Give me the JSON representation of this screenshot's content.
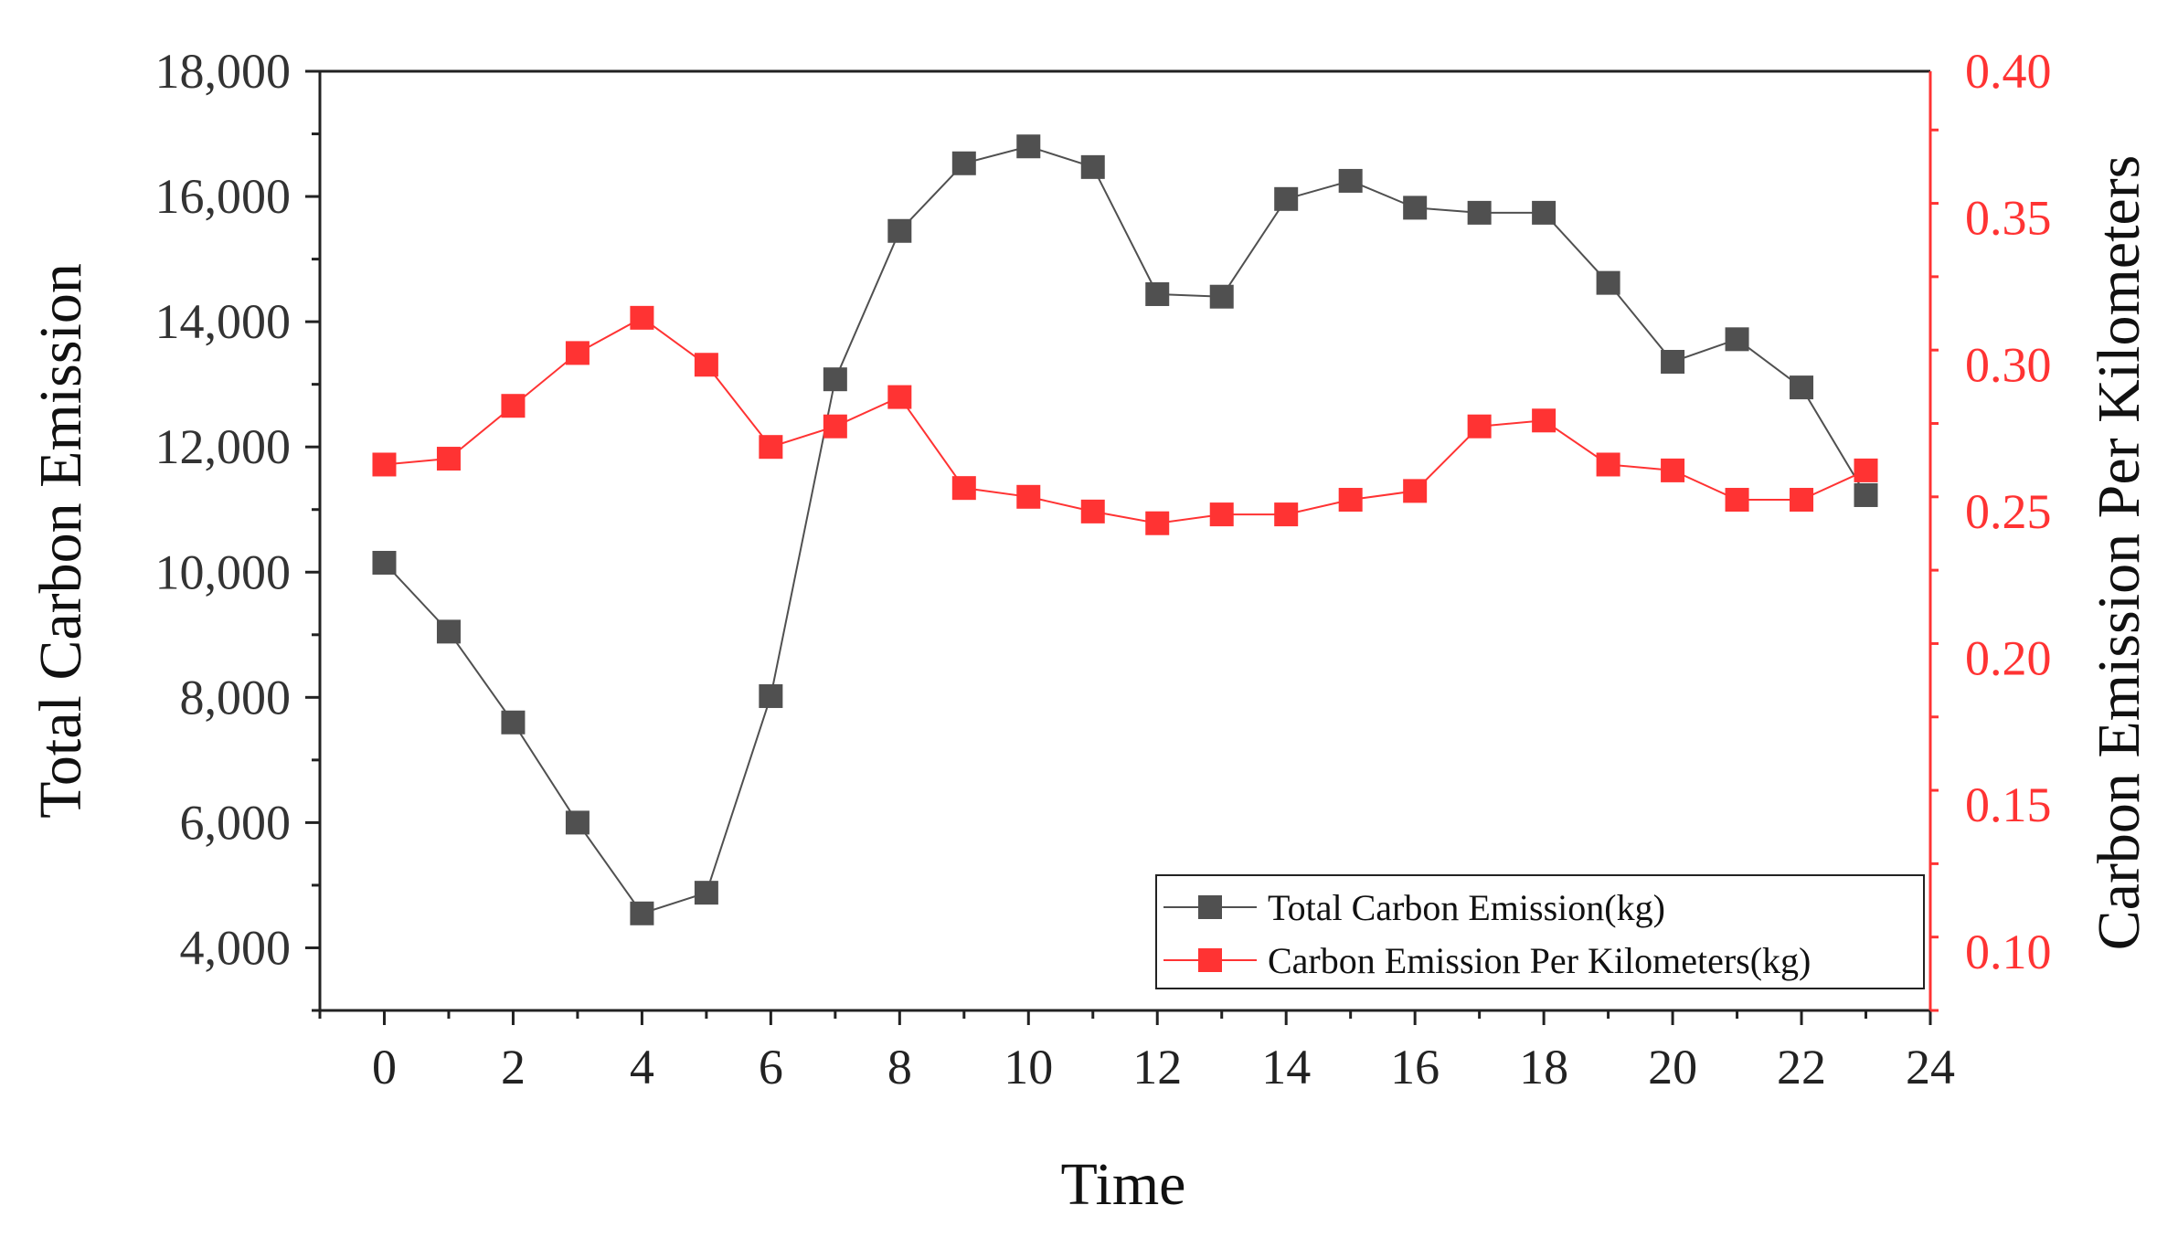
{
  "chart_data": {
    "type": "line",
    "title": "",
    "xlabel": "Time",
    "ylabel_left": "Total Carbon Emission",
    "ylabel_right": "Carbon Emission Per Kilometers",
    "xlim": [
      -1,
      24
    ],
    "ylim_left": [
      3000,
      18000
    ],
    "ylim_right": [
      0.08,
      0.4
    ],
    "x_ticks": [
      0,
      2,
      4,
      6,
      8,
      10,
      12,
      14,
      16,
      18,
      20,
      22,
      24
    ],
    "y_left_ticks": [
      4000,
      6000,
      8000,
      10000,
      12000,
      14000,
      16000,
      18000
    ],
    "y_left_tick_labels": [
      "4,000",
      "6,000",
      "8,000",
      "10,000",
      "12,000",
      "14,000",
      "16,000",
      "18,000"
    ],
    "y_right_ticks": [
      0.1,
      0.15,
      0.2,
      0.25,
      0.3,
      0.35,
      0.4
    ],
    "y_right_tick_labels": [
      "0.10",
      "0.15",
      "0.20",
      "0.25",
      "0.30",
      "0.35",
      "0.40"
    ],
    "grid": false,
    "legend_position": "bottom-right",
    "x": [
      0,
      1,
      2,
      3,
      4,
      5,
      6,
      7,
      8,
      9,
      10,
      11,
      12,
      13,
      14,
      15,
      16,
      17,
      18,
      19,
      20,
      21,
      22,
      23
    ],
    "series": [
      {
        "name": "Total Carbon Emission(kg)",
        "axis": "left",
        "color": "#505050",
        "values": [
          10150,
          9050,
          7600,
          6000,
          4550,
          4880,
          8020,
          13080,
          15450,
          16530,
          16800,
          16470,
          14440,
          14400,
          15960,
          16250,
          15820,
          15740,
          15740,
          14620,
          13360,
          13720,
          12950,
          11230
        ]
      },
      {
        "name": "Carbon Emission Per Kilometers(kg)",
        "axis": "right",
        "color": "#ff3333",
        "values": [
          0.266,
          0.268,
          0.286,
          0.304,
          0.316,
          0.3,
          0.272,
          0.279,
          0.289,
          0.258,
          0.255,
          0.25,
          0.246,
          0.249,
          0.249,
          0.254,
          0.257,
          0.279,
          0.281,
          0.266,
          0.264,
          0.254,
          0.254,
          0.264
        ]
      }
    ]
  },
  "colors": {
    "axis_left": "#222222",
    "axis_right": "#ff3333",
    "tick_text_left": "#333333",
    "tick_text_right": "#ff3333"
  }
}
